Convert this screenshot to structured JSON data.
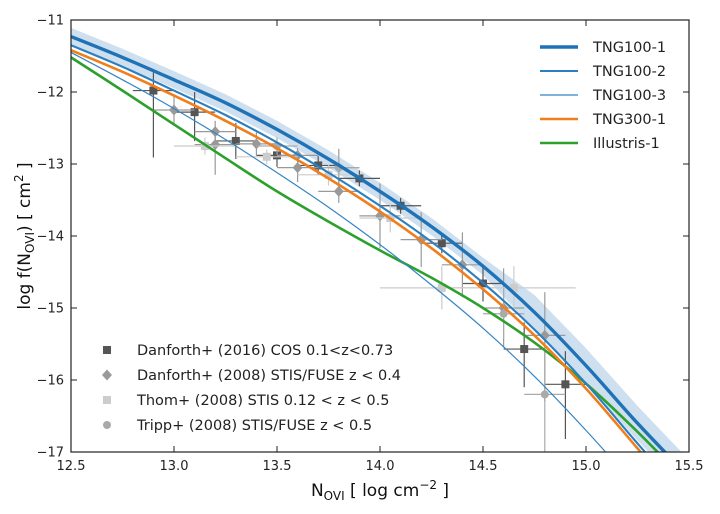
{
  "chart_data": {
    "type": "line",
    "title": "",
    "xlabel": {
      "base": "N",
      "sub": "OVI",
      "rest": " [ log cm",
      "sup": "−2",
      "end": " ]"
    },
    "ylabel": {
      "base": "log f(N",
      "sub": "OVI",
      "rest": ") [ cm",
      "sup": "2",
      "end": " ]"
    },
    "xlim": [
      12.5,
      15.5
    ],
    "ylim": [
      -17,
      -11
    ],
    "xticks": [
      12.5,
      13.0,
      13.5,
      14.0,
      14.5,
      15.0,
      15.5
    ],
    "xtick_labels": [
      "12.5",
      "13.0",
      "13.5",
      "14.0",
      "14.5",
      "15.0",
      "15.5"
    ],
    "yticks": [
      -17,
      -16,
      -15,
      -14,
      -13,
      -12,
      -11
    ],
    "ytick_labels": [
      "−17",
      "−16",
      "−15",
      "−14",
      "−13",
      "−12",
      "−11"
    ],
    "grid": false,
    "lines_legend_position": "top-right",
    "points_legend_position": "bottom-left",
    "series": [
      {
        "name": "TNG100-1",
        "color": "#1f72b5",
        "width": 3.4,
        "x": [
          12.5,
          12.75,
          13.0,
          13.25,
          13.5,
          13.75,
          14.0,
          14.25,
          14.5,
          14.75,
          15.0,
          15.25,
          15.5
        ],
        "y": [
          -11.23,
          -11.52,
          -11.83,
          -12.15,
          -12.52,
          -12.93,
          -13.38,
          -13.87,
          -14.42,
          -15.06,
          -15.8,
          -16.6,
          -17.35
        ],
        "band": 0.12
      },
      {
        "name": "TNG100-2",
        "color": "#2a7fc0",
        "width": 2.1,
        "x": [
          12.5,
          12.75,
          13.0,
          13.25,
          13.5,
          13.75,
          14.0,
          14.25,
          14.5,
          14.75,
          15.0,
          15.25,
          15.5
        ],
        "y": [
          -11.35,
          -11.65,
          -11.98,
          -12.32,
          -12.7,
          -13.12,
          -13.58,
          -14.08,
          -14.65,
          -15.3,
          -16.05,
          -16.88,
          -17.7
        ]
      },
      {
        "name": "TNG100-3",
        "color": "#3585c4",
        "width": 1.2,
        "x": [
          12.5,
          12.75,
          13.0,
          13.25,
          13.5,
          13.75,
          14.0,
          14.25,
          14.5,
          14.75,
          15.0,
          15.25
        ],
        "y": [
          -11.45,
          -11.83,
          -12.23,
          -12.66,
          -13.12,
          -13.6,
          -14.12,
          -14.68,
          -15.28,
          -15.95,
          -16.7,
          -17.5
        ]
      },
      {
        "name": "TNG300-1",
        "color": "#f07e1c",
        "width": 2.6,
        "x": [
          12.5,
          12.75,
          13.0,
          13.25,
          13.5,
          13.75,
          14.0,
          14.25,
          14.5,
          14.75,
          15.0,
          15.25,
          15.5
        ],
        "y": [
          -11.42,
          -11.72,
          -12.05,
          -12.4,
          -12.78,
          -13.2,
          -13.66,
          -14.17,
          -14.74,
          -15.38,
          -16.12,
          -16.95,
          -17.8
        ]
      },
      {
        "name": "Illustris-1",
        "color": "#2ca02c",
        "width": 2.6,
        "x": [
          12.5,
          12.75,
          13.0,
          13.25,
          13.5,
          13.75,
          14.0,
          14.25,
          14.5,
          14.75,
          15.0,
          15.25,
          15.5
        ],
        "y": [
          -11.52,
          -11.98,
          -12.45,
          -12.92,
          -13.38,
          -13.8,
          -14.2,
          -14.58,
          -15.0,
          -15.48,
          -16.05,
          -16.72,
          -17.45
        ]
      }
    ],
    "observations": [
      {
        "name": "Danforth+ (2016) COS 0.1<z<0.73",
        "marker": "square",
        "color": "#555555",
        "points": [
          {
            "x": 12.9,
            "y": -11.98,
            "xerr": 0.1,
            "yerr": [
              0.93,
              0.25
            ]
          },
          {
            "x": 13.1,
            "y": -12.28,
            "xerr": 0.1,
            "yerr": [
              0.4,
              0.28
            ]
          },
          {
            "x": 13.3,
            "y": -12.68,
            "xerr": 0.1,
            "yerr": [
              0.25,
              0.25
            ]
          },
          {
            "x": 13.5,
            "y": -12.88,
            "xerr": 0.1,
            "yerr": [
              0.16,
              0.16
            ]
          },
          {
            "x": 13.7,
            "y": -13.02,
            "xerr": 0.1,
            "yerr": [
              0.13,
              0.13
            ]
          },
          {
            "x": 13.9,
            "y": -13.2,
            "xerr": 0.1,
            "yerr": [
              0.11,
              0.11
            ]
          },
          {
            "x": 14.1,
            "y": -13.58,
            "xerr": 0.1,
            "yerr": [
              0.11,
              0.11
            ]
          },
          {
            "x": 14.3,
            "y": -14.1,
            "xerr": 0.1,
            "yerr": [
              0.14,
              0.14
            ]
          },
          {
            "x": 14.5,
            "y": -14.66,
            "xerr": 0.1,
            "yerr": [
              0.25,
              0.25
            ]
          },
          {
            "x": 14.7,
            "y": -15.57,
            "xerr": 0.1,
            "yerr": [
              0.53,
              0.37
            ]
          },
          {
            "x": 14.9,
            "y": -16.06,
            "xerr": 0.1,
            "yerr": [
              0.76,
              0.46
            ]
          }
        ]
      },
      {
        "name": "Danforth+ (2008) STIS/FUSE z < 0.4",
        "marker": "diamond",
        "color": "#999999",
        "points": [
          {
            "x": 13.0,
            "y": -12.25,
            "xerr": 0.1,
            "yerr": [
              0.22,
              0.2
            ]
          },
          {
            "x": 13.2,
            "y": -12.55,
            "xerr": 0.1,
            "yerr": [
              0.15,
              0.15
            ]
          },
          {
            "x": 13.2,
            "y": -12.73,
            "xerr": 0.1,
            "yerr": [
              0.42,
              0.22
            ]
          },
          {
            "x": 13.4,
            "y": -12.72,
            "xerr": 0.1,
            "yerr": [
              0.16,
              0.16
            ]
          },
          {
            "x": 13.6,
            "y": -12.88,
            "xerr": 0.1,
            "yerr": [
              0.1,
              0.1
            ]
          },
          {
            "x": 13.6,
            "y": -13.05,
            "xerr": 0.1,
            "yerr": [
              0.2,
              0.15
            ]
          },
          {
            "x": 13.8,
            "y": -13.05,
            "xerr": 0.1,
            "yerr": [
              0.26,
              0.26
            ]
          },
          {
            "x": 13.8,
            "y": -13.38,
            "xerr": 0.1,
            "yerr": [
              0.16,
              0.16
            ]
          },
          {
            "x": 14.0,
            "y": -13.72,
            "xerr": 0.1,
            "yerr": [
              0.45,
              0.45
            ]
          },
          {
            "x": 14.2,
            "y": -14.05,
            "xerr": 0.1,
            "yerr": [
              0.38,
              0.38
            ]
          },
          {
            "x": 14.4,
            "y": -14.4,
            "xerr": 0.1,
            "yerr": [
              0.45,
              0.45
            ]
          },
          {
            "x": 14.6,
            "y": -15.0,
            "xerr": 0.1,
            "yerr": [
              0.55,
              0.55
            ]
          },
          {
            "x": 14.8,
            "y": -15.38,
            "xerr": 0.1,
            "yerr": [
              0.92,
              0.6
            ]
          }
        ]
      },
      {
        "name": "Thom+ (2008) STIS 0.12 < z < 0.5",
        "marker": "square",
        "color": "#cccccc",
        "points": [
          {
            "x": 13.15,
            "y": -12.75,
            "xerr": 0.15,
            "yerr": [
              0.12,
              0.12
            ]
          },
          {
            "x": 13.45,
            "y": -12.9,
            "xerr": 0.15,
            "yerr": [
              0.1,
              0.1
            ]
          },
          {
            "x": 13.75,
            "y": -13.15,
            "xerr": 0.15,
            "yerr": [
              0.15,
              0.15
            ]
          },
          {
            "x": 14.05,
            "y": -13.75,
            "xerr": 0.15,
            "yerr": [
              0.2,
              0.2
            ]
          },
          {
            "x": 14.3,
            "y": -14.72,
            "xerr": 0.3,
            "yerr": [
              0.3,
              0.3
            ]
          },
          {
            "x": 14.65,
            "y": -14.72,
            "xerr": 0.3,
            "yerr": [
              0.3,
              0.3
            ]
          }
        ]
      },
      {
        "name": "Tripp+ (2008) STIS/FUSE z < 0.5",
        "marker": "circle",
        "color": "#aaaaaa",
        "points": [
          {
            "x": 13.5,
            "y": -12.75,
            "xerr": 0.1,
            "yerr": [
              0.12,
              0.12
            ]
          },
          {
            "x": 13.8,
            "y": -13.05,
            "xerr": 0.1,
            "yerr": [
              0.15,
              0.15
            ]
          },
          {
            "x": 14.6,
            "y": -15.08,
            "xerr": 0.1,
            "yerr": [
              0.35,
              0.35
            ]
          },
          {
            "x": 14.8,
            "y": -16.2,
            "xerr": 0.1,
            "yerr": [
              0.9,
              0.7
            ]
          }
        ]
      }
    ]
  }
}
